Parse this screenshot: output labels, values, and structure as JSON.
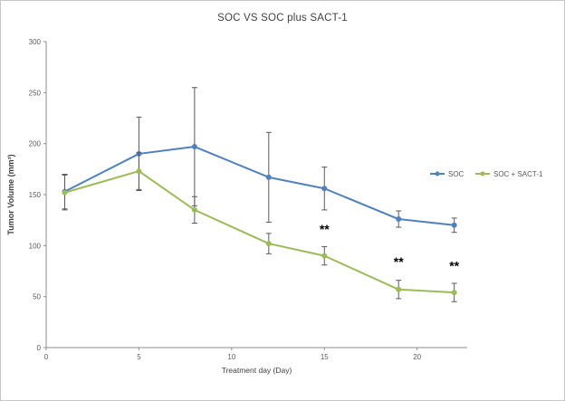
{
  "figure": {
    "background_color": "#ffffff",
    "border_color": "#c6c6c6"
  },
  "chart_data": {
    "type": "line",
    "title": "SOC VS SOC plus SACT-1",
    "xlabel": "Treatment day (Day)",
    "ylabel": "Tumor Volume (mm³)",
    "xlim": [
      0,
      22.7
    ],
    "ylim": [
      0,
      300
    ],
    "x_ticks": [
      0,
      5,
      10,
      15,
      20
    ],
    "y_ticks": [
      0,
      50,
      100,
      150,
      200,
      250,
      300
    ],
    "x": [
      1,
      5,
      8,
      12,
      15,
      19,
      22
    ],
    "series": [
      {
        "name": "SOC",
        "color": "#4F81BD",
        "values": [
          153,
          190,
          197,
          167,
          156,
          126,
          120
        ],
        "errors": [
          17,
          36,
          58,
          44,
          21,
          8,
          7
        ]
      },
      {
        "name": "SOC + SACT-1",
        "color": "#9BBB59",
        "values": [
          152,
          173,
          135,
          102,
          90,
          57,
          54
        ],
        "errors": [
          17,
          18,
          13,
          10,
          9,
          9,
          9
        ]
      }
    ],
    "annotations": [
      {
        "text": "**",
        "x": 15,
        "y": 112
      },
      {
        "text": "**",
        "x": 19,
        "y": 80
      },
      {
        "text": "**",
        "x": 22,
        "y": 76
      }
    ],
    "legend": {
      "position": "center-right",
      "items": [
        "SOC",
        "SOC + SACT-1"
      ]
    },
    "error_bar_color": "#595959",
    "grid": false
  }
}
